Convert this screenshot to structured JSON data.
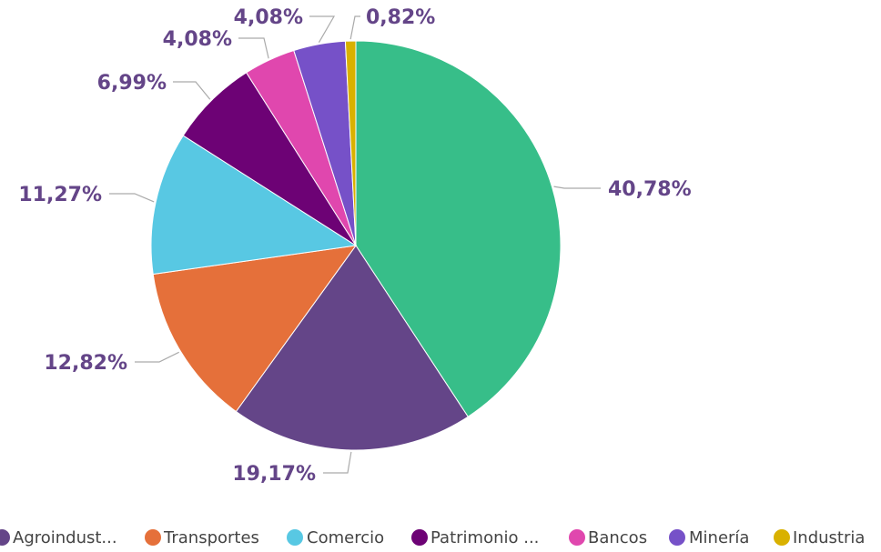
{
  "chart_data": {
    "type": "pie",
    "categories": [
      null,
      "Agroindust...",
      "Transportes",
      "Comercio",
      "Patrimonio ...",
      "Bancos",
      "Minería",
      "Industria"
    ],
    "values": [
      40.78,
      19.17,
      12.82,
      11.27,
      6.99,
      4.08,
      4.08,
      0.82
    ],
    "value_labels": [
      "40,78%",
      "19,17%",
      "12,82%",
      "11,27%",
      "6,99%",
      "4,08%",
      "4,08%",
      "0,82%"
    ],
    "colors": [
      "#37BE89",
      "#644588",
      "#E5703A",
      "#58C8E3",
      "#6D0275",
      "#E047AE",
      "#7651C8",
      "#D9B100"
    ],
    "legend": "bottom"
  }
}
